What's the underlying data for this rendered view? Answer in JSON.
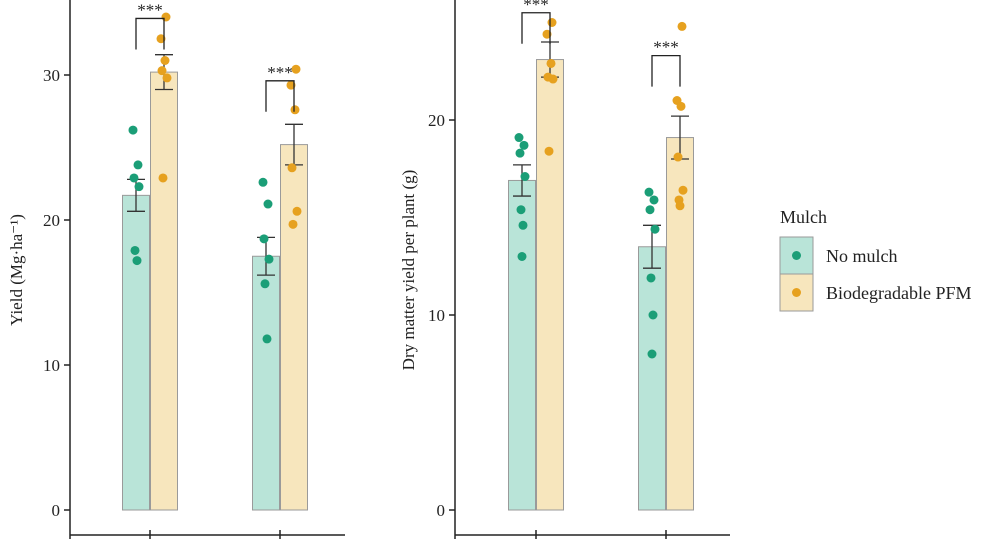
{
  "colors": {
    "no_mulch_fill": "#b9e4d8",
    "no_mulch_point": "#1b9e77",
    "pfm_fill": "#f7e6bd",
    "pfm_point": "#e6a11f",
    "bar_stroke": "#9a9a9a",
    "axis": "#222222"
  },
  "chart_data": [
    {
      "type": "bar",
      "ylabel": "Yield (Mg·ha⁻¹)",
      "ylim": [
        0,
        34
      ],
      "yticks": [
        0,
        10,
        20,
        30
      ],
      "groups": 2,
      "series": [
        {
          "name": "No mulch",
          "values": [
            21.7,
            17.5
          ],
          "se": [
            1.1,
            1.3
          ],
          "points": [
            [
              26.2,
              23.8,
              22.9,
              22.3,
              17.9,
              17.2
            ],
            [
              22.6,
              21.1,
              18.7,
              17.3,
              15.6,
              11.8
            ]
          ]
        },
        {
          "name": "Biodegradable PFM",
          "values": [
            30.2,
            25.2
          ],
          "se": [
            1.2,
            1.4
          ],
          "points": [
            [
              34.0,
              32.5,
              31.0,
              30.3,
              29.8,
              22.9
            ],
            [
              30.4,
              29.3,
              27.6,
              23.6,
              20.6,
              19.7
            ]
          ]
        }
      ],
      "annotations": [
        {
          "label": "***",
          "group": 0,
          "y_bracket": 33.9
        },
        {
          "label": "***",
          "group": 1,
          "y_bracket": 29.6
        }
      ]
    },
    {
      "type": "bar",
      "ylabel": "Dry matter yield per plant (g)",
      "ylim": [
        0,
        26
      ],
      "yticks": [
        0,
        10,
        20
      ],
      "groups": 2,
      "series": [
        {
          "name": "No mulch",
          "values": [
            16.9,
            13.5
          ],
          "se": [
            0.8,
            1.1
          ],
          "points": [
            [
              19.1,
              18.7,
              18.3,
              17.1,
              15.4,
              14.6,
              13.0
            ],
            [
              16.3,
              15.9,
              15.4,
              14.4,
              11.9,
              10.0,
              8.0
            ]
          ]
        },
        {
          "name": "Biodegradable PFM",
          "values": [
            23.1,
            19.1
          ],
          "se": [
            0.9,
            1.1
          ],
          "points": [
            [
              25.0,
              24.4,
              22.9,
              22.2,
              22.1,
              18.4
            ],
            [
              24.8,
              21.0,
              20.7,
              18.1,
              16.4,
              15.9,
              15.6
            ]
          ]
        }
      ],
      "annotations": [
        {
          "label": "***",
          "group": 0,
          "y_bracket": 25.5
        },
        {
          "label": "***",
          "group": 1,
          "y_bracket": 23.3
        }
      ]
    }
  ],
  "legend": {
    "title": "Mulch",
    "items": [
      {
        "label": "No mulch"
      },
      {
        "label": "Biodegradable PFM"
      }
    ]
  }
}
